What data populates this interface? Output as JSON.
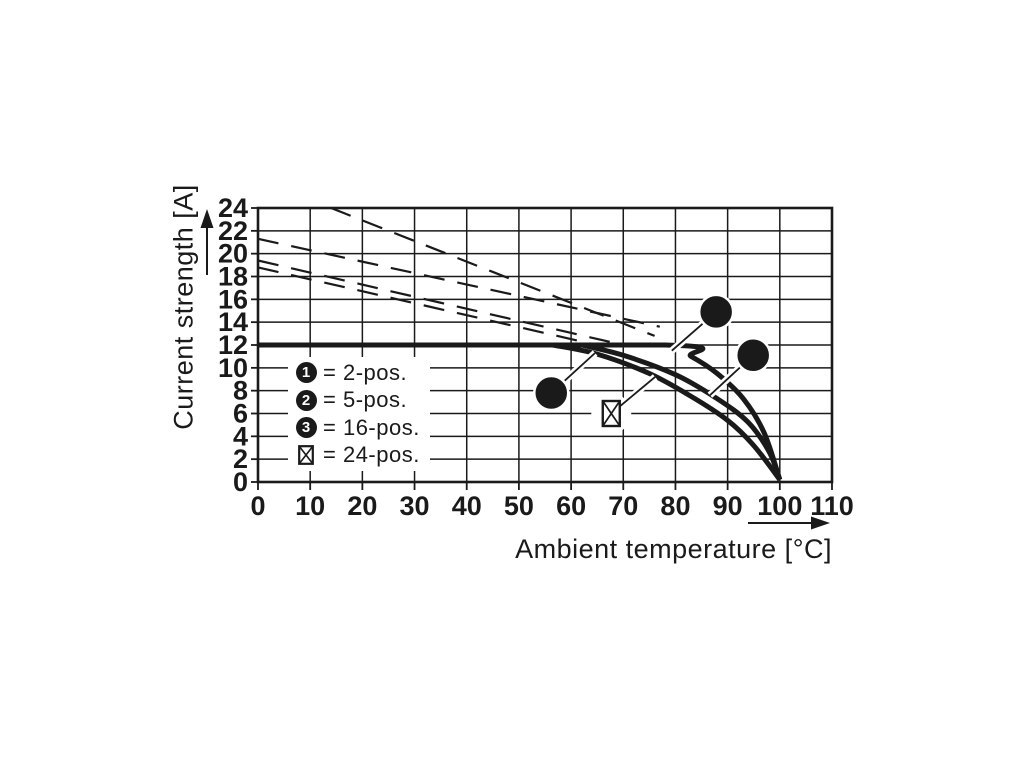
{
  "chart_data": {
    "type": "line",
    "title": "",
    "xlabel": "Ambient temperature [°C]",
    "ylabel": "Current strength [A]",
    "xlim": [
      0,
      110
    ],
    "ylim": [
      0,
      24
    ],
    "x_ticks": [
      0,
      10,
      20,
      30,
      40,
      50,
      60,
      70,
      80,
      90,
      100,
      110
    ],
    "y_ticks": [
      0,
      2,
      4,
      6,
      8,
      10,
      12,
      14,
      16,
      18,
      20,
      22,
      24
    ],
    "grid": true,
    "colors": {
      "ink": "#1a1a1a",
      "background": "#ffffff"
    },
    "series": [
      {
        "name": "2-pos",
        "marker": "1",
        "style": "solid",
        "points": [
          [
            0,
            12
          ],
          [
            78,
            12
          ],
          [
            83,
            11
          ],
          [
            88,
            9.5
          ],
          [
            93,
            7.3
          ],
          [
            97,
            4.3
          ],
          [
            100,
            0.2
          ]
        ]
      },
      {
        "name": "5-pos",
        "marker": "2",
        "style": "solid",
        "points": [
          [
            62,
            12
          ],
          [
            70,
            11.1
          ],
          [
            80,
            9.4
          ],
          [
            88,
            7.3
          ],
          [
            94,
            5.2
          ],
          [
            98,
            2.6
          ],
          [
            100,
            0.2
          ]
        ]
      },
      {
        "name": "16-pos / 24-pos",
        "marker": "3 / box",
        "style": "solid",
        "points": [
          [
            56.5,
            12
          ],
          [
            65,
            11.2
          ],
          [
            75,
            9.5
          ],
          [
            83,
            7.5
          ],
          [
            90,
            5.4
          ],
          [
            95,
            3.2
          ],
          [
            100,
            0.2
          ]
        ]
      },
      {
        "name": "dashed-upper",
        "style": "dashed",
        "points": [
          [
            14,
            24
          ],
          [
            76,
            12.8
          ]
        ]
      },
      {
        "name": "dashed-2",
        "style": "dashed",
        "points": [
          [
            0,
            21.3
          ],
          [
            77,
            13.6
          ]
        ]
      },
      {
        "name": "dashed-3",
        "style": "dashed",
        "points": [
          [
            0,
            19.4
          ],
          [
            70,
            12.0
          ]
        ]
      },
      {
        "name": "dashed-4",
        "style": "dashed",
        "points": [
          [
            0,
            18.8
          ],
          [
            64,
            12.1
          ]
        ]
      }
    ],
    "callouts": [
      {
        "label": "1",
        "shape": "circle",
        "at": [
          87.8,
          14.9
        ],
        "target": [
          79.3,
          11.5
        ]
      },
      {
        "label": "2",
        "shape": "circle",
        "at": [
          94.9,
          11.1
        ],
        "target": [
          86.6,
          7.6
        ]
      },
      {
        "label": "3",
        "shape": "circle",
        "at": [
          56.2,
          7.8
        ],
        "target": [
          64.6,
          11.3
        ]
      },
      {
        "label": "",
        "shape": "box-x",
        "at": [
          67.7,
          6.0
        ],
        "target": [
          76.1,
          9.2
        ]
      }
    ],
    "legend": {
      "position": "inside-left",
      "items": [
        {
          "symbol": "1",
          "label": "= 2-pos."
        },
        {
          "symbol": "2",
          "label": "= 5-pos."
        },
        {
          "symbol": "3",
          "label": "= 16-pos."
        },
        {
          "symbol": "box-x",
          "label": "= 24-pos."
        }
      ]
    }
  }
}
